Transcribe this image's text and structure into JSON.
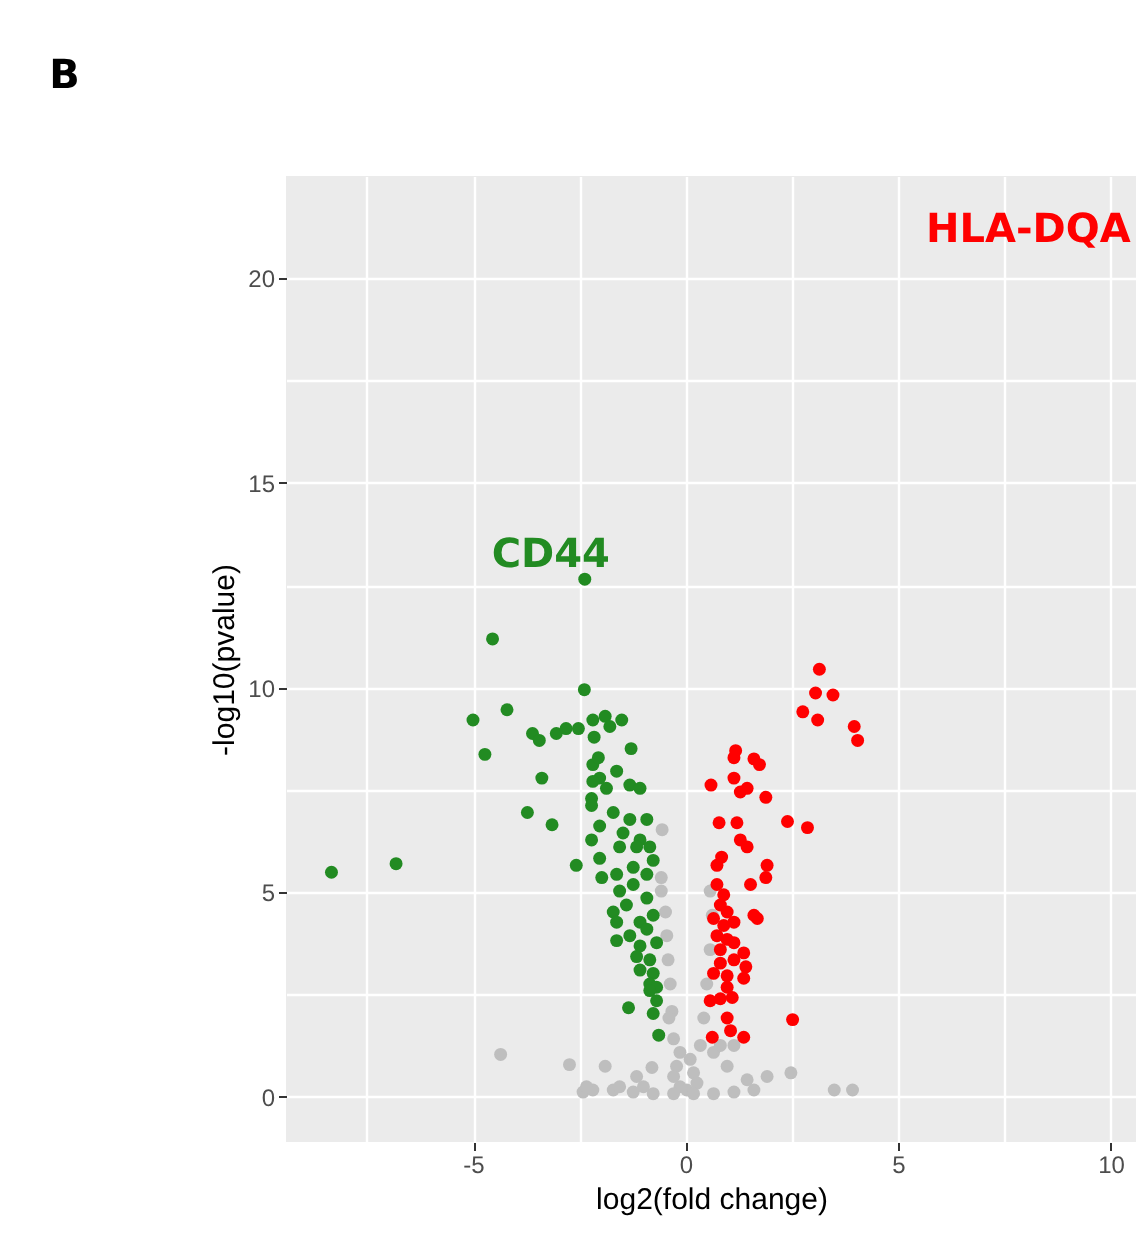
{
  "chart_data": {
    "type": "scatter",
    "title": "B",
    "xlabel": "log2(fold change)",
    "ylabel": "-log10(pvalue)",
    "xlim": [
      -9.4,
      10.6
    ],
    "ylim": [
      -1.1,
      22.5
    ],
    "xticks": [
      {
        "value": -7.5,
        "label": null
      },
      -5,
      {
        "value": -2.5,
        "label": null
      },
      0,
      {
        "value": 2.5,
        "label": null
      },
      5,
      {
        "value": 7.5,
        "label": null
      },
      10
    ],
    "yticks": [
      0,
      {
        "value": 2.5,
        "label": null
      },
      5,
      {
        "value": 7.5,
        "label": null
      },
      10,
      {
        "value": 12.5,
        "label": null
      },
      15,
      {
        "value": 17.5,
        "label": null
      },
      20
    ],
    "grid": true,
    "marker": "circle",
    "annotations": [
      {
        "text": "CD44",
        "x": -2.37,
        "y": 12.65
      },
      "HLA-DQA"
    ],
    "series": [
      {
        "color": "#bebebe",
        "x": [
          -0.55,
          -0.57,
          -0.57,
          -0.47,
          -0.44,
          -0.41,
          -0.36,
          -0.32,
          -0.28,
          -0.21,
          -0.13,
          0.03,
          0.19,
          0.35,
          0.43,
          0.5,
          0.58,
          0.63,
          0.58,
          -0.28,
          -0.13,
          0.11,
          0.27,
          -0.39,
          0.66,
          0.82,
          1.14,
          0.98,
          1.45,
          1.92,
          2.48,
          3.5,
          3.93,
          1.61,
          1.14,
          0.66,
          -0.76,
          -1.23,
          -1.7,
          -2.18,
          -2.41,
          -4.35,
          -2.73,
          -1.89,
          -1.15,
          -0.79,
          -2.33,
          -1.55,
          -0.99,
          -0.28,
          0.19
        ],
        "values": [
          6.53,
          5.36,
          5.03,
          4.52,
          3.94,
          3.35,
          2.76,
          2.09,
          1.42,
          0.75,
          0.25,
          0.17,
          0.59,
          1.26,
          1.93,
          2.76,
          3.6,
          4.44,
          5.03,
          0.5,
          1.09,
          0.92,
          0.34,
          1.93,
          1.09,
          1.26,
          1.26,
          0.75,
          0.42,
          0.5,
          0.59,
          0.17,
          0.17,
          0.17,
          0.12,
          0.08,
          0.08,
          0.12,
          0.17,
          0.17,
          0.12,
          1.04,
          0.79,
          0.75,
          0.5,
          0.72,
          0.25,
          0.25,
          0.25,
          0.08,
          0.08
        ]
      },
      {
        "color": "#228b22",
        "x": [
          -8.33,
          -6.81,
          -4.54,
          -2.37,
          -5.0,
          -4.2,
          -4.72,
          -2.38,
          -3.6,
          -3.44,
          -3.04,
          -2.81,
          -2.52,
          -2.18,
          -1.89,
          -1.5,
          -2.15,
          -1.78,
          -1.28,
          -3.38,
          -3.72,
          -3.14,
          -2.57,
          -2.21,
          -2.02,
          -2.18,
          -2.05,
          -1.62,
          -2.18,
          -1.86,
          -1.31,
          -1.07,
          -2.21,
          -2.02,
          -2.21,
          -1.7,
          -1.47,
          -1.31,
          -0.91,
          -1.07,
          -1.55,
          -1.15,
          -0.84,
          -0.76,
          -1.23,
          -2.02,
          -1.97,
          -1.62,
          -0.91,
          -1.55,
          -1.23,
          -0.91,
          -1.7,
          -1.39,
          -1.62,
          -1.07,
          -0.76,
          -1.31,
          -0.91,
          -1.62,
          -1.07,
          -0.68,
          -1.15,
          -0.84,
          -1.07,
          -0.76,
          -0.84,
          -0.68,
          -0.84,
          -0.68,
          -1.34,
          -0.76,
          -0.63
        ],
        "values": [
          5.49,
          5.7,
          11.19,
          12.65,
          9.21,
          9.46,
          8.37,
          9.95,
          8.88,
          8.71,
          8.88,
          9.0,
          9.0,
          9.21,
          9.3,
          9.21,
          8.79,
          9.05,
          8.51,
          7.79,
          6.95,
          6.65,
          5.66,
          7.29,
          7.79,
          8.12,
          8.29,
          7.96,
          7.71,
          7.54,
          7.62,
          7.54,
          7.12,
          6.62,
          6.28,
          6.95,
          6.45,
          6.78,
          6.78,
          6.28,
          6.11,
          6.11,
          6.11,
          5.78,
          5.61,
          5.83,
          5.36,
          5.44,
          5.44,
          5.03,
          5.19,
          4.86,
          4.52,
          4.69,
          4.27,
          4.27,
          4.44,
          3.94,
          4.1,
          3.82,
          3.69,
          3.77,
          3.43,
          3.35,
          3.1,
          3.02,
          2.76,
          2.68,
          2.6,
          2.35,
          2.18,
          2.04,
          1.51
        ]
      },
      {
        "color": "#ff0000",
        "x": [
          3.15,
          3.06,
          3.47,
          2.76,
          3.11,
          3.97,
          4.05,
          1.18,
          1.14,
          1.61,
          1.74,
          0.6,
          1.14,
          1.29,
          1.45,
          1.89,
          2.4,
          2.87,
          0.79,
          1.21,
          1.29,
          1.45,
          0.74,
          0.85,
          1.92,
          1.53,
          1.89,
          0.74,
          0.9,
          0.82,
          0.98,
          0.66,
          0.9,
          1.14,
          1.61,
          1.69,
          0.74,
          0.98,
          0.82,
          1.14,
          1.37,
          0.82,
          1.14,
          1.42,
          0.66,
          0.98,
          1.37,
          0.98,
          0.58,
          0.82,
          1.1,
          0.98,
          2.52,
          1.06,
          1.37,
          0.63
        ],
        "values": [
          10.45,
          9.87,
          9.82,
          9.41,
          9.21,
          9.05,
          8.71,
          8.46,
          8.29,
          8.26,
          8.12,
          7.62,
          7.79,
          7.45,
          7.54,
          7.32,
          6.73,
          6.58,
          6.7,
          6.7,
          6.28,
          6.11,
          5.66,
          5.86,
          5.66,
          5.19,
          5.36,
          5.19,
          4.94,
          4.69,
          4.52,
          4.36,
          4.19,
          4.27,
          4.44,
          4.36,
          3.94,
          3.85,
          3.6,
          3.77,
          3.52,
          3.27,
          3.35,
          3.18,
          3.02,
          2.96,
          2.9,
          2.68,
          2.35,
          2.4,
          2.43,
          1.93,
          1.89,
          1.62,
          1.46,
          1.46
        ]
      }
    ]
  }
}
